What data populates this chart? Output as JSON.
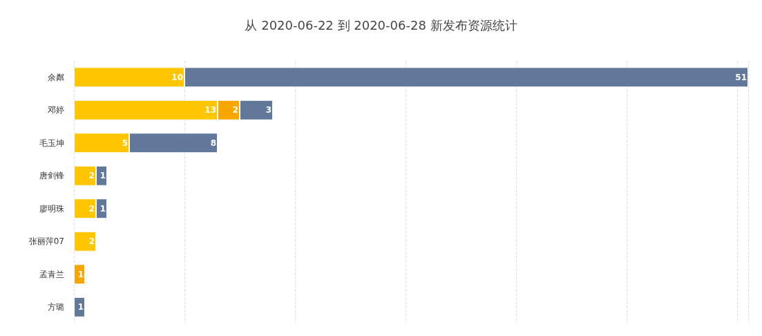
{
  "chart_data": {
    "type": "bar",
    "orientation": "horizontal",
    "stacked": true,
    "title": "从 2020-06-22 到 2020-06-28 新发布资源统计",
    "categories": [
      "余粼",
      "邓婷",
      "毛玉坤",
      "唐剑锋",
      "廖明珠",
      "张丽萍07",
      "孟青兰",
      "方璐"
    ],
    "series": [
      {
        "color": "#ffc600",
        "values": [
          10,
          13,
          5,
          2,
          2,
          2,
          null,
          null
        ]
      },
      {
        "color": "#f7a600",
        "values": [
          null,
          2,
          null,
          null,
          null,
          null,
          1,
          null
        ]
      },
      {
        "color": "#62789a",
        "values": [
          51,
          3,
          8,
          1,
          1,
          null,
          null,
          1
        ]
      }
    ],
    "xlim": [
      0,
      61
    ],
    "tick_labels": "y",
    "grid": "x",
    "data_labels": true
  }
}
